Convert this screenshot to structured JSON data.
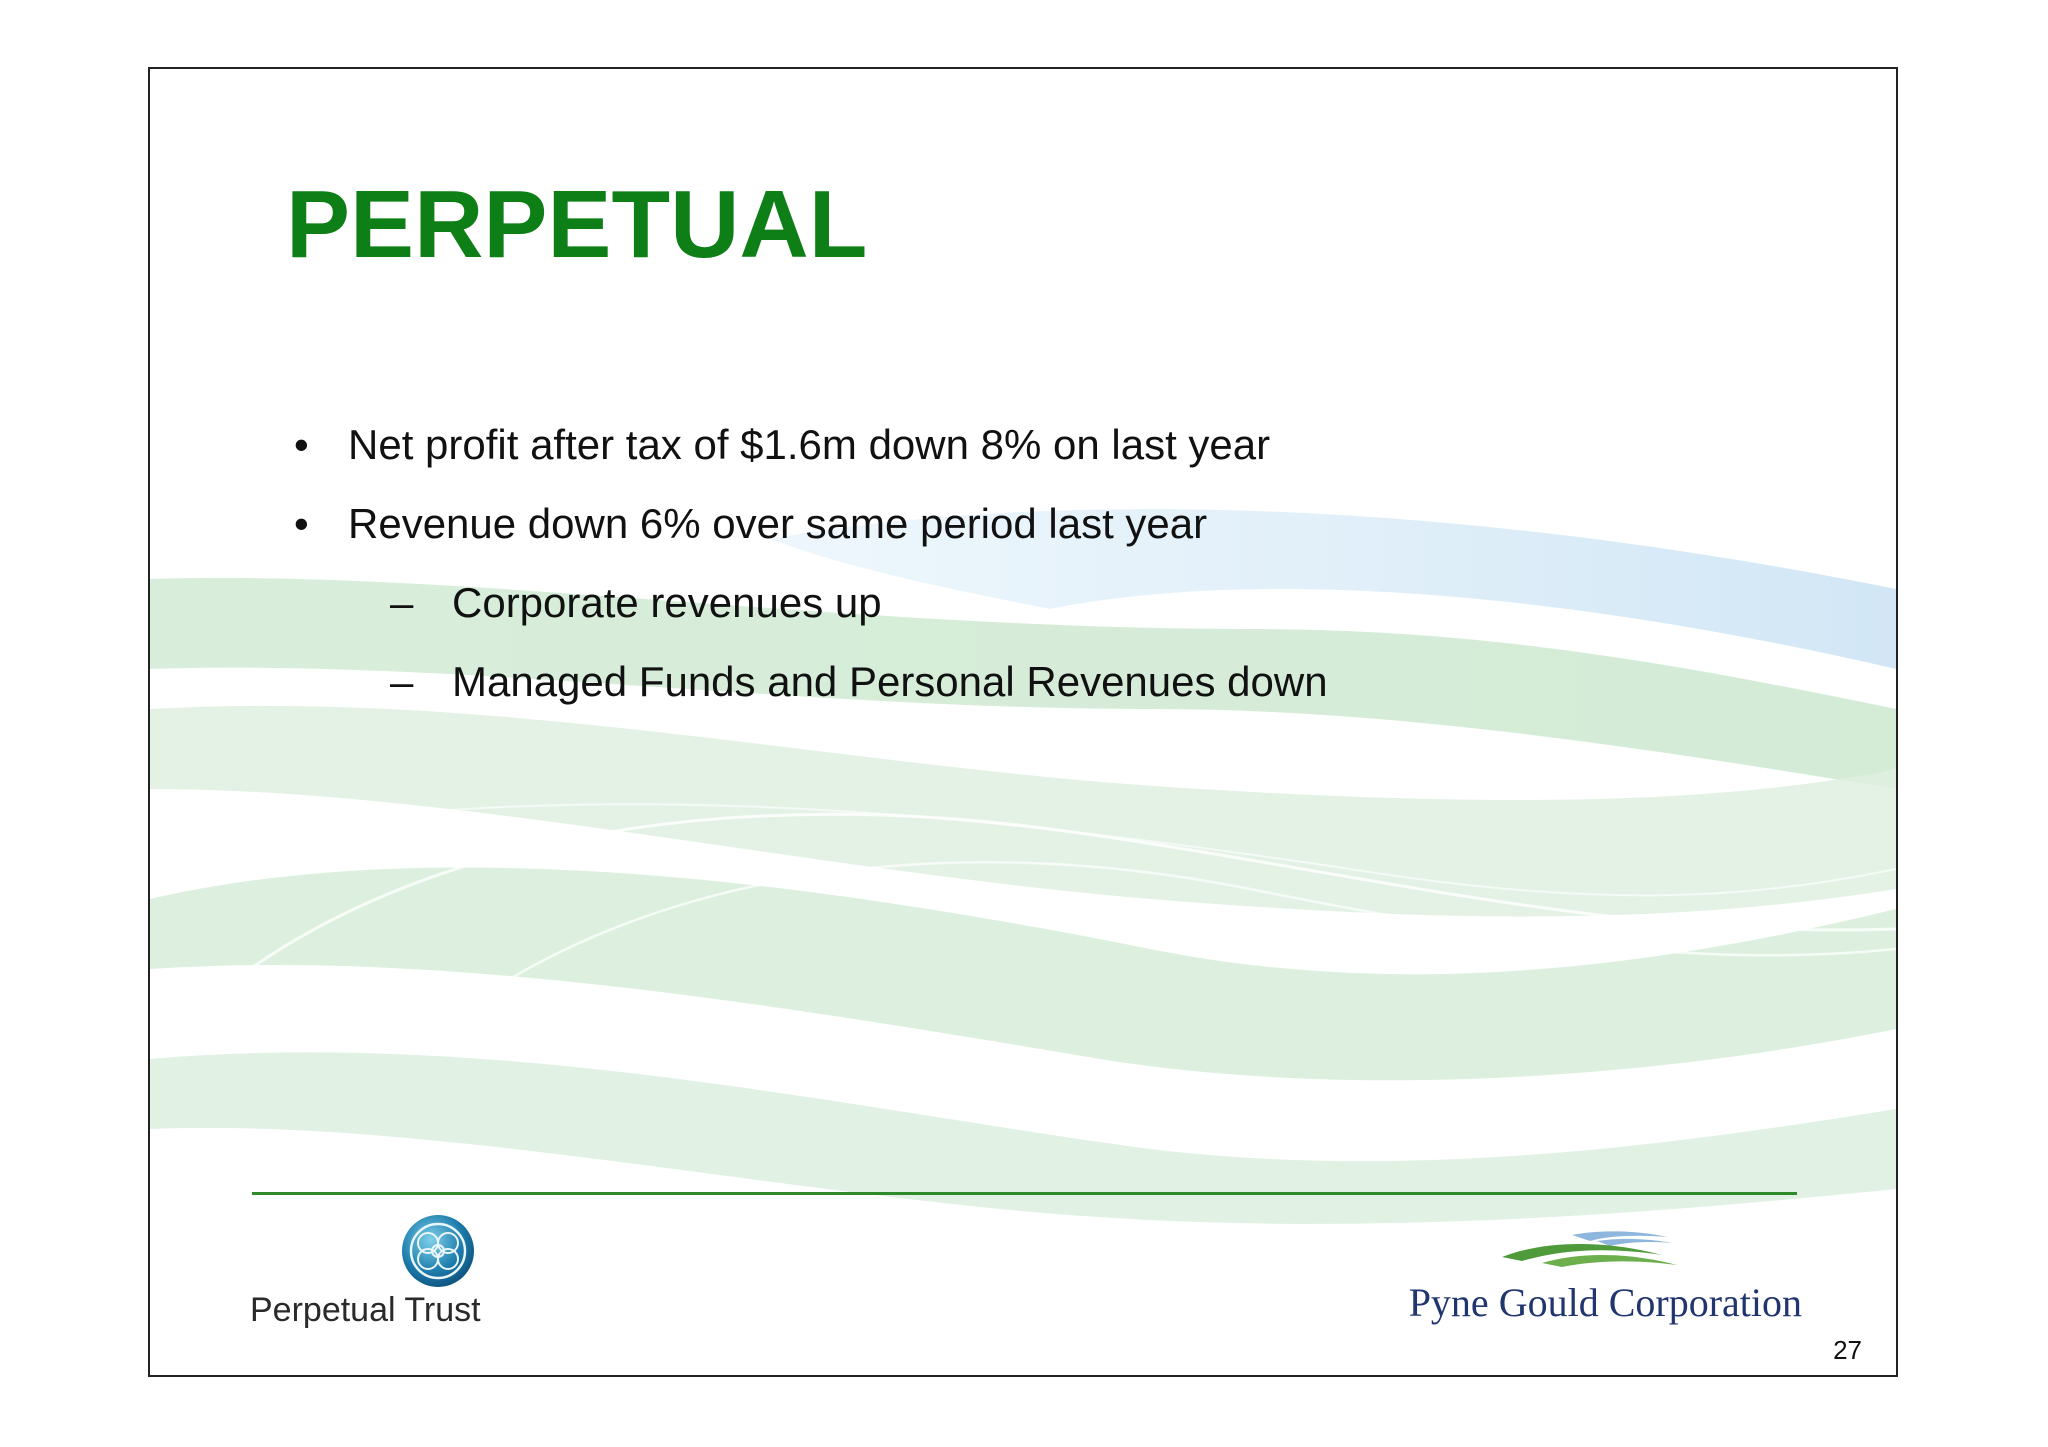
{
  "slide": {
    "title": "PERPETUAL",
    "bullets": [
      {
        "level": 1,
        "marker": "•",
        "text": "Net profit after tax of $1.6m down 8% on last year"
      },
      {
        "level": 1,
        "marker": "•",
        "text": "Revenue down 6% over same period last year"
      },
      {
        "level": 2,
        "marker": "–",
        "text": "Corporate revenues up"
      },
      {
        "level": 2,
        "marker": "–",
        "text": "Managed Funds and Personal Revenues down"
      }
    ],
    "page_number": "27"
  },
  "footer": {
    "left_logo_text": "Perpetual Trust",
    "right_logo_text": "Pyne Gould Corporation"
  },
  "colors": {
    "title": "#0e7f16",
    "rule": "#2f8a2a",
    "wave_green": "#d8eedb",
    "wave_blue": "#dcedf8",
    "pgc_text": "#21366e",
    "pt_emblem": "#1f7fae"
  }
}
